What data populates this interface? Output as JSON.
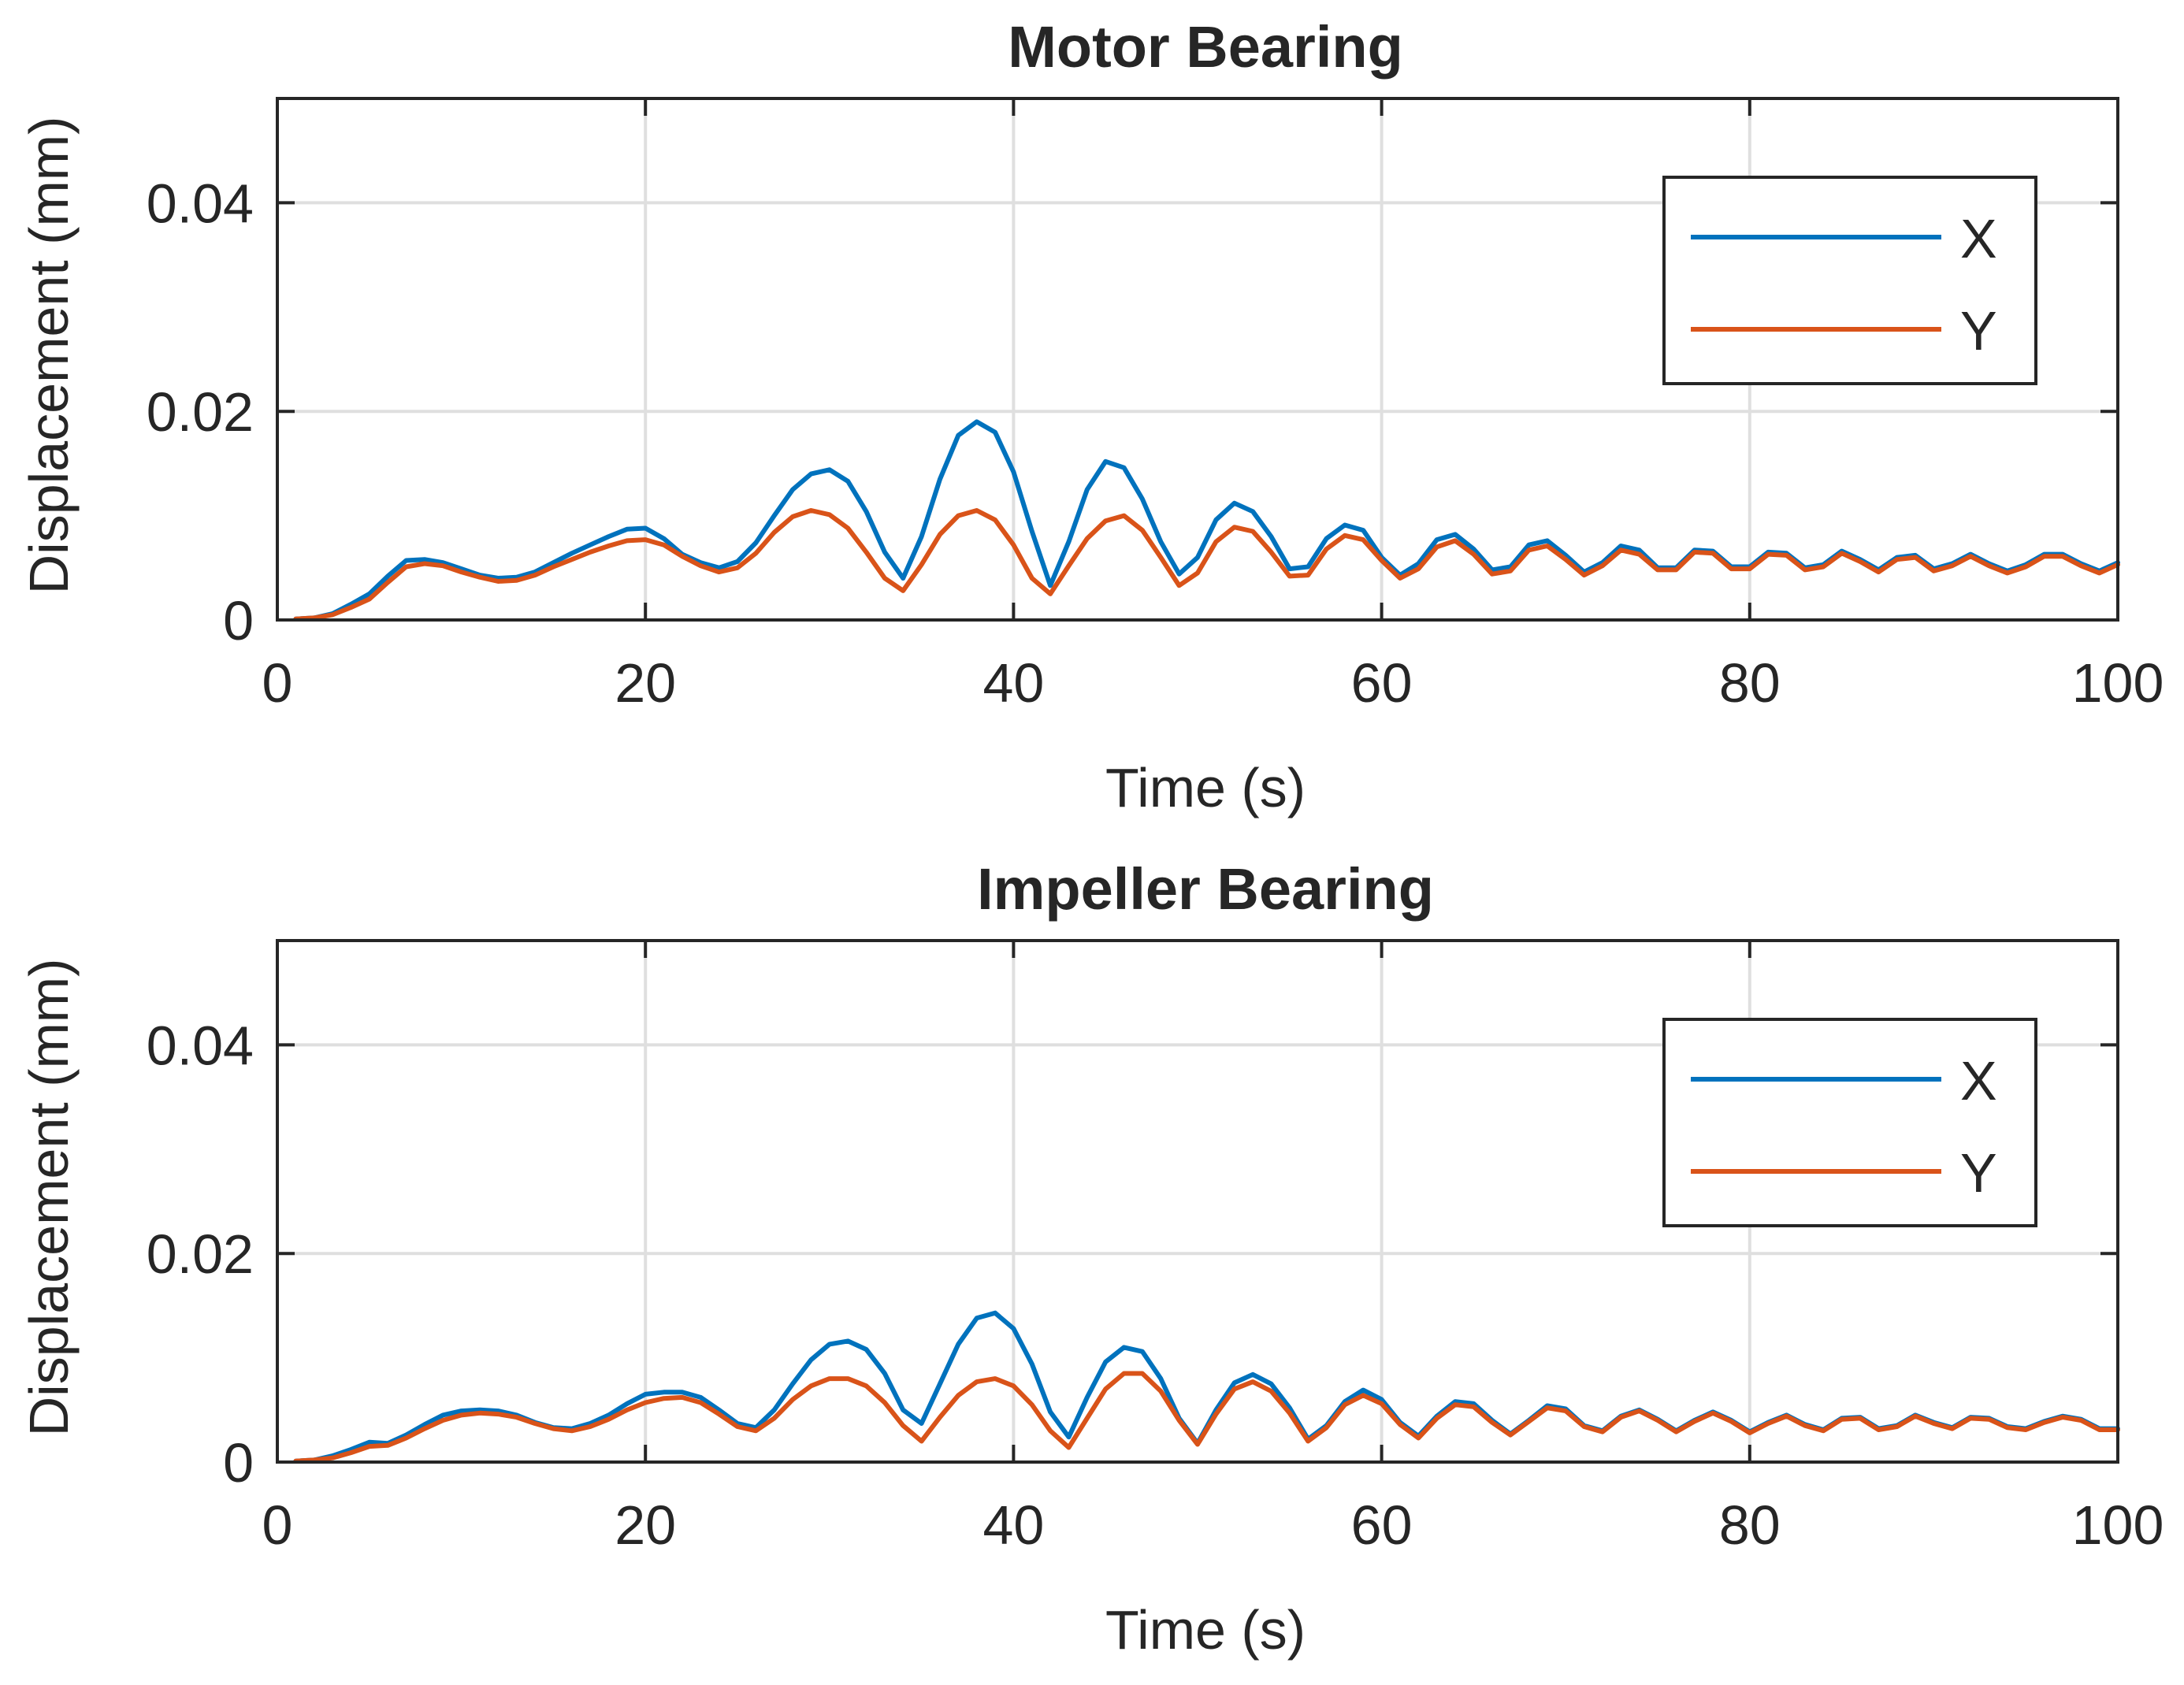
{
  "chart_data": [
    {
      "type": "line",
      "title": "Motor Bearing",
      "xlabel": "Time (s)",
      "ylabel": "Displacement (mm)",
      "xlim": [
        0,
        100
      ],
      "ylim": [
        0,
        0.05
      ],
      "xticks": [
        0,
        20,
        40,
        60,
        80,
        100
      ],
      "xtick_labels": [
        "0",
        "20",
        "40",
        "60",
        "80",
        "100"
      ],
      "yticks": [
        0,
        0.02,
        0.04
      ],
      "ytick_labels": [
        "0",
        "0.02",
        "0.04"
      ],
      "grid": true,
      "legend_position": "top-right",
      "x": [
        1,
        2,
        3,
        4,
        5,
        6,
        7,
        8,
        9,
        10,
        11,
        12,
        13,
        14,
        15,
        16,
        17,
        18,
        19,
        20,
        21,
        22,
        23,
        24,
        25,
        26,
        27,
        28,
        29,
        30,
        31,
        32,
        33,
        34,
        35,
        36,
        37,
        38,
        39,
        40,
        41,
        42,
        43,
        44,
        45,
        46,
        47,
        48,
        49,
        50,
        51,
        52,
        53,
        54,
        55,
        56,
        57,
        58,
        59,
        60,
        61,
        62,
        63,
        64,
        65,
        66,
        67,
        68,
        69,
        70,
        71,
        72,
        73,
        74,
        75,
        76,
        77,
        78,
        79,
        80,
        81,
        82,
        83,
        84,
        85,
        86,
        87,
        88,
        89,
        90,
        91,
        92,
        93,
        94,
        95,
        96,
        97,
        98,
        99,
        100
      ],
      "series": [
        {
          "name": "X",
          "color": "#0072BD",
          "values": [
            0.0001,
            0.0002,
            0.0006,
            0.0015,
            0.0025,
            0.0042,
            0.0057,
            0.0058,
            0.0055,
            0.0049,
            0.0043,
            0.004,
            0.0041,
            0.0046,
            0.0055,
            0.0064,
            0.0072,
            0.008,
            0.0087,
            0.0088,
            0.0078,
            0.0063,
            0.0055,
            0.005,
            0.0056,
            0.0074,
            0.01,
            0.0125,
            0.014,
            0.0144,
            0.0133,
            0.0104,
            0.0065,
            0.004,
            0.008,
            0.0135,
            0.0177,
            0.019,
            0.018,
            0.0142,
            0.0085,
            0.0033,
            0.0075,
            0.0125,
            0.0152,
            0.0146,
            0.0116,
            0.0075,
            0.0044,
            0.006,
            0.0096,
            0.0112,
            0.0104,
            0.008,
            0.0049,
            0.0051,
            0.0078,
            0.0091,
            0.0086,
            0.006,
            0.0043,
            0.0054,
            0.0077,
            0.0082,
            0.0068,
            0.0048,
            0.0051,
            0.0072,
            0.0076,
            0.0062,
            0.0046,
            0.0055,
            0.0071,
            0.0067,
            0.005,
            0.005,
            0.0067,
            0.0066,
            0.0051,
            0.0051,
            0.0065,
            0.0064,
            0.005,
            0.0053,
            0.0066,
            0.0058,
            0.0048,
            0.006,
            0.0062,
            0.0049,
            0.0054,
            0.0063,
            0.0054,
            0.0047,
            0.0053,
            0.0063,
            0.0063,
            0.0054,
            0.0047,
            0.0055
          ]
        },
        {
          "name": "Y",
          "color": "#D95319",
          "values": [
            0.0001,
            0.0002,
            0.0005,
            0.0012,
            0.002,
            0.0036,
            0.0051,
            0.0054,
            0.0052,
            0.0046,
            0.0041,
            0.0037,
            0.0038,
            0.0043,
            0.0051,
            0.0058,
            0.0065,
            0.0071,
            0.0076,
            0.0077,
            0.0072,
            0.0061,
            0.0052,
            0.0046,
            0.005,
            0.0064,
            0.0084,
            0.0099,
            0.0105,
            0.0101,
            0.0088,
            0.0065,
            0.004,
            0.0028,
            0.0053,
            0.0082,
            0.01,
            0.0105,
            0.0096,
            0.0072,
            0.004,
            0.0025,
            0.0052,
            0.0078,
            0.0095,
            0.01,
            0.0086,
            0.006,
            0.0033,
            0.0045,
            0.0075,
            0.0089,
            0.0085,
            0.0065,
            0.0042,
            0.0043,
            0.0068,
            0.0081,
            0.0077,
            0.0057,
            0.004,
            0.0049,
            0.007,
            0.0076,
            0.0063,
            0.0044,
            0.0047,
            0.0067,
            0.0071,
            0.0058,
            0.0043,
            0.0052,
            0.0067,
            0.0063,
            0.0048,
            0.0048,
            0.0065,
            0.0064,
            0.0049,
            0.0049,
            0.0063,
            0.0062,
            0.0048,
            0.0051,
            0.0064,
            0.0056,
            0.0046,
            0.0058,
            0.006,
            0.0047,
            0.0052,
            0.0061,
            0.0052,
            0.0045,
            0.0051,
            0.0061,
            0.0061,
            0.0052,
            0.0045,
            0.0053
          ]
        }
      ]
    },
    {
      "type": "line",
      "title": "Impeller Bearing",
      "xlabel": "Time (s)",
      "ylabel": "Displacement (mm)",
      "xlim": [
        0,
        100
      ],
      "ylim": [
        0,
        0.05
      ],
      "xticks": [
        0,
        20,
        40,
        60,
        80,
        100
      ],
      "xtick_labels": [
        "0",
        "20",
        "40",
        "60",
        "80",
        "100"
      ],
      "yticks": [
        0,
        0.02,
        0.04
      ],
      "ytick_labels": [
        "0",
        "0.02",
        "0.04"
      ],
      "grid": true,
      "legend_position": "top-right",
      "x": [
        1,
        2,
        3,
        4,
        5,
        6,
        7,
        8,
        9,
        10,
        11,
        12,
        13,
        14,
        15,
        16,
        17,
        18,
        19,
        20,
        21,
        22,
        23,
        24,
        25,
        26,
        27,
        28,
        29,
        30,
        31,
        32,
        33,
        34,
        35,
        36,
        37,
        38,
        39,
        40,
        41,
        42,
        43,
        44,
        45,
        46,
        47,
        48,
        49,
        50,
        51,
        52,
        53,
        54,
        55,
        56,
        57,
        58,
        59,
        60,
        61,
        62,
        63,
        64,
        65,
        66,
        67,
        68,
        69,
        70,
        71,
        72,
        73,
        74,
        75,
        76,
        77,
        78,
        79,
        80,
        81,
        82,
        83,
        84,
        85,
        86,
        87,
        88,
        89,
        90,
        91,
        92,
        93,
        94,
        95,
        96,
        97,
        98,
        99,
        100
      ],
      "series": [
        {
          "name": "X",
          "color": "#0072BD",
          "values": [
            0.0001,
            0.0002,
            0.0006,
            0.0012,
            0.0019,
            0.0018,
            0.0026,
            0.0036,
            0.0045,
            0.0049,
            0.005,
            0.0049,
            0.0045,
            0.0038,
            0.0033,
            0.0032,
            0.0037,
            0.0045,
            0.0056,
            0.0065,
            0.0067,
            0.0067,
            0.0062,
            0.005,
            0.0037,
            0.0033,
            0.005,
            0.0075,
            0.0098,
            0.0113,
            0.0116,
            0.0108,
            0.0085,
            0.005,
            0.0037,
            0.0075,
            0.0113,
            0.0138,
            0.0143,
            0.0128,
            0.0094,
            0.0048,
            0.0024,
            0.0062,
            0.0096,
            0.011,
            0.0106,
            0.008,
            0.0042,
            0.0018,
            0.005,
            0.0076,
            0.0084,
            0.0075,
            0.0052,
            0.0022,
            0.0035,
            0.0058,
            0.0069,
            0.006,
            0.0038,
            0.0025,
            0.0044,
            0.0058,
            0.0056,
            0.004,
            0.0027,
            0.004,
            0.0054,
            0.0051,
            0.0035,
            0.003,
            0.0044,
            0.005,
            0.0041,
            0.003,
            0.004,
            0.0048,
            0.004,
            0.0029,
            0.0038,
            0.0045,
            0.0036,
            0.0031,
            0.0042,
            0.0043,
            0.0032,
            0.0035,
            0.0045,
            0.0038,
            0.0033,
            0.0043,
            0.0042,
            0.0034,
            0.0032,
            0.0039,
            0.0044,
            0.0041,
            0.0032,
            0.0032
          ]
        },
        {
          "name": "Y",
          "color": "#D95319",
          "values": [
            0.0001,
            0.0002,
            0.0004,
            0.0009,
            0.0015,
            0.0016,
            0.0023,
            0.0032,
            0.004,
            0.0045,
            0.0047,
            0.0046,
            0.0043,
            0.0037,
            0.0032,
            0.003,
            0.0034,
            0.0041,
            0.005,
            0.0057,
            0.0061,
            0.0062,
            0.0057,
            0.0046,
            0.0034,
            0.003,
            0.0042,
            0.006,
            0.0073,
            0.008,
            0.008,
            0.0073,
            0.0057,
            0.0035,
            0.002,
            0.0043,
            0.0064,
            0.0077,
            0.008,
            0.0073,
            0.0055,
            0.003,
            0.0014,
            0.0042,
            0.007,
            0.0085,
            0.0085,
            0.0068,
            0.004,
            0.0017,
            0.0046,
            0.007,
            0.0077,
            0.0068,
            0.0047,
            0.002,
            0.0033,
            0.0055,
            0.0064,
            0.0056,
            0.0036,
            0.0023,
            0.0042,
            0.0055,
            0.0053,
            0.0038,
            0.0026,
            0.0039,
            0.0052,
            0.0049,
            0.0034,
            0.0029,
            0.0043,
            0.0049,
            0.004,
            0.0029,
            0.0039,
            0.0047,
            0.0039,
            0.0028,
            0.0037,
            0.0044,
            0.0035,
            0.003,
            0.0041,
            0.0042,
            0.0031,
            0.0034,
            0.0044,
            0.0037,
            0.0032,
            0.0042,
            0.0041,
            0.0033,
            0.0031,
            0.0038,
            0.0043,
            0.004,
            0.0031,
            0.0031
          ]
        }
      ]
    }
  ]
}
